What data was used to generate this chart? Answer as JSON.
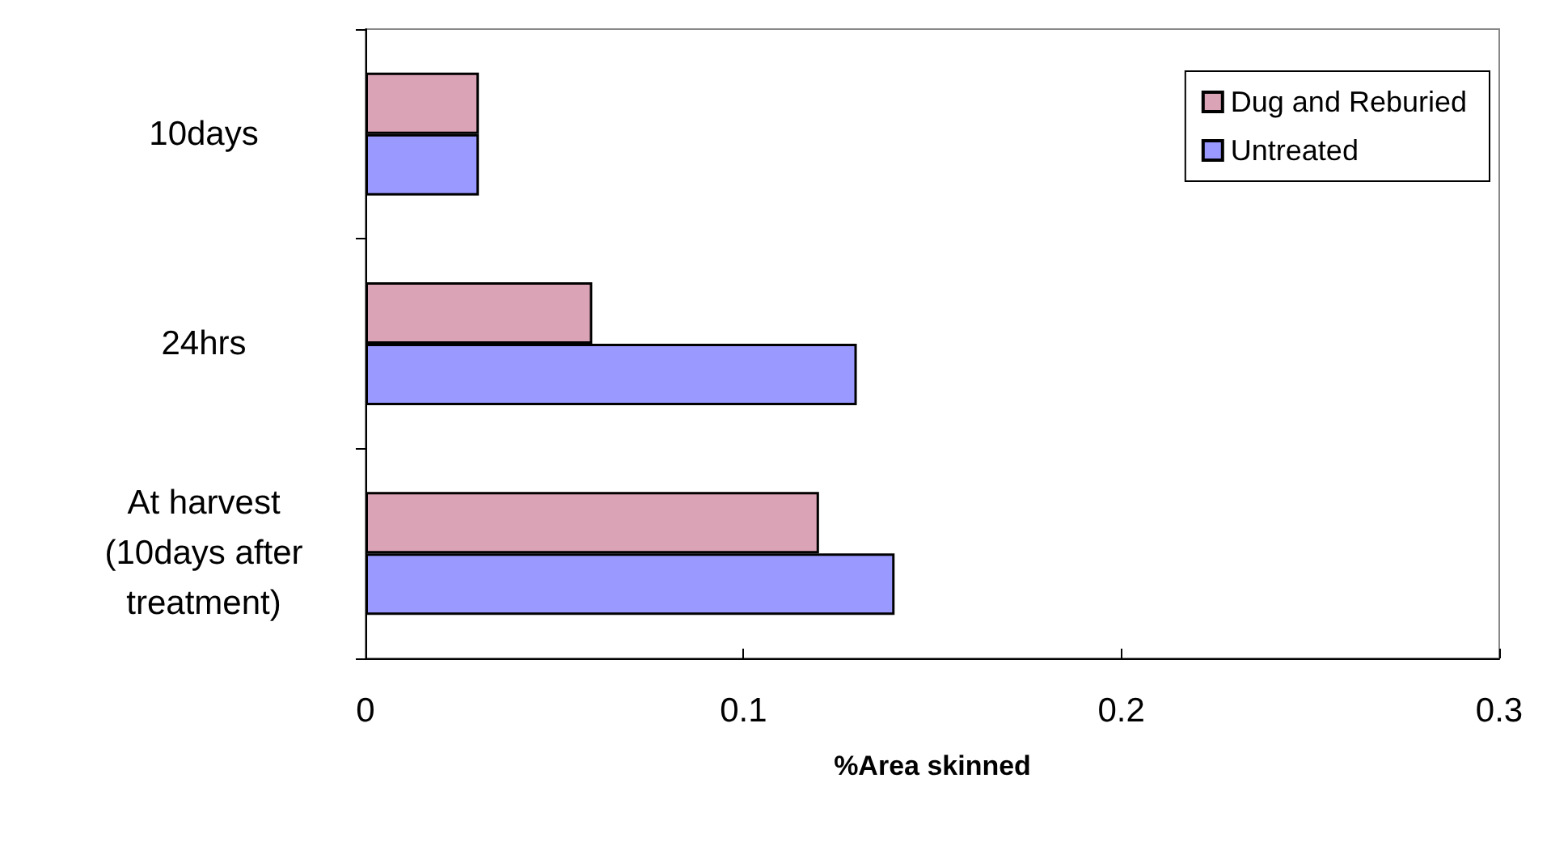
{
  "chart_data": {
    "type": "bar",
    "orientation": "horizontal",
    "xlabel": "%Area skinned",
    "categories": [
      "10days",
      "24hrs",
      "At harvest\n(10days after\ntreatment)"
    ],
    "series": [
      {
        "name": "Dug and Reburied",
        "color": "#dba3b6",
        "values": [
          0.03,
          0.06,
          0.12
        ]
      },
      {
        "name": "Untreated",
        "color": "#9999ff",
        "values": [
          0.03,
          0.13,
          0.14
        ]
      }
    ],
    "xlim": [
      0,
      0.3
    ],
    "xticks": [
      0,
      0.1,
      0.2,
      0.3
    ],
    "grid": false,
    "legend": "top right"
  }
}
